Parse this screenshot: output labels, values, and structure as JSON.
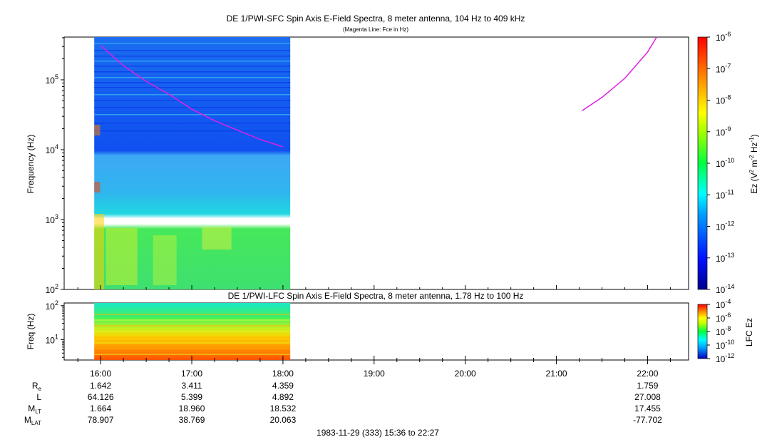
{
  "chart_data": [
    {
      "type": "heatmap",
      "title": "DE 1/PWI-SFC  Spin Axis E-Field Spectra, 8 meter antenna, 104 Hz to 409 kHz",
      "subtitle": "(Magenta Line: Fce in Hz)",
      "ylabel": "Frequency (Hz)",
      "yscale": "log",
      "ylim": [
        100,
        409000
      ],
      "yticks": [
        {
          "exp": "2"
        },
        {
          "exp": "3"
        },
        {
          "exp": "4"
        },
        {
          "exp": "5"
        }
      ],
      "data_coverage_hours": [
        15.93,
        18.08
      ],
      "data_gap_hz": [
        950,
        1050
      ],
      "colorbar": {
        "label_prefix": "Ez (V",
        "label_sup1": "2",
        "label_mid": " m",
        "label_sup2": "-2",
        "label_mid2": " Hz",
        "label_sup3": "-1",
        "label_suffix": ")",
        "scale": "log",
        "range": [
          1e-14,
          1e-06
        ],
        "ticks": [
          {
            "exp": "-6"
          },
          {
            "exp": "-7"
          },
          {
            "exp": "-8"
          },
          {
            "exp": "-9"
          },
          {
            "exp": "-10"
          },
          {
            "exp": "-11"
          },
          {
            "exp": "-12"
          },
          {
            "exp": "-13"
          },
          {
            "exp": "-14"
          }
        ]
      },
      "series": [
        {
          "kind": "line",
          "color": "#e020e0",
          "x_hours": [
            16.0,
            16.25,
            16.5,
            16.75,
            17.0,
            17.25,
            17.5,
            17.75,
            18.0
          ],
          "y_hz": [
            310000,
            160000,
            95000,
            62000,
            38000,
            26000,
            19000,
            14000,
            11000
          ]
        },
        {
          "kind": "line",
          "color": "#e020e0",
          "x_hours": [
            21.28,
            21.5,
            21.75,
            22.0,
            22.1
          ],
          "y_hz": [
            36000,
            56000,
            105000,
            250000,
            409000
          ]
        }
      ]
    },
    {
      "type": "heatmap",
      "title": "DE 1/PWI-LFC  Spin Axis E-Field Spectra, 8 meter antenna, 1.78 Hz to 100 Hz",
      "ylabel": "Freq (Hz)",
      "yscale": "log",
      "ylim": [
        2.5,
        120
      ],
      "yticks": [
        {
          "exp": "1"
        },
        {
          "exp": "2"
        }
      ],
      "data_coverage_hours": [
        15.93,
        18.08
      ],
      "colorbar": {
        "label": "LFC Ez",
        "scale": "log",
        "range": [
          1e-12,
          0.0001
        ],
        "ticks": [
          {
            "exp": "-4"
          },
          {
            "exp": "-6"
          },
          {
            "exp": "-8"
          },
          {
            "exp": "-10"
          },
          {
            "exp": "-12"
          }
        ]
      }
    }
  ],
  "time_axis": {
    "xlim_hours": [
      15.6,
      22.45
    ],
    "tick_labels": [
      "16:00",
      "17:00",
      "18:00",
      "19:00",
      "20:00",
      "21:00",
      "22:00"
    ]
  },
  "ephemeris": {
    "labels": [
      {
        "main": "R",
        "sub": "e"
      },
      {
        "main": "L",
        "sub": ""
      },
      {
        "main": "M",
        "sub": "LT"
      },
      {
        "main": "M",
        "sub": "LAT"
      }
    ],
    "columns": [
      {
        "hour": 16.0,
        "values": [
          "1.642",
          "64.126",
          "1.664",
          "78.907"
        ]
      },
      {
        "hour": 17.0,
        "values": [
          "3.411",
          "5.399",
          "18.960",
          "38.769"
        ]
      },
      {
        "hour": 18.0,
        "values": [
          "4.359",
          "4.892",
          "18.532",
          "20.063"
        ]
      },
      {
        "hour": 22.0,
        "values": [
          "1.759",
          "27.008",
          "17.455",
          "-77.702"
        ]
      }
    ]
  },
  "footer": "1983-11-29 (333) 15:36 to 22:27"
}
